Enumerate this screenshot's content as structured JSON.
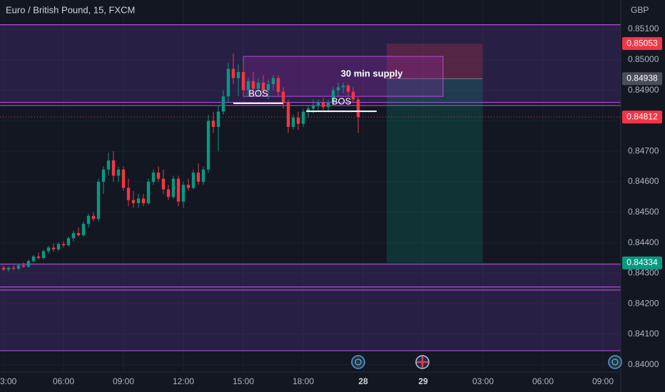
{
  "chart_data": {
    "type": "candlestick",
    "title": "Euro / British Pound, 15, FXCM",
    "currency": "GBP",
    "up_color": "#089981",
    "down_color": "#f23645",
    "level_color": "#b04ad8",
    "grid": true,
    "xlim": [
      -0.714,
      123.57
    ],
    "ylim": [
      0.83976,
      0.85196
    ],
    "xticks": [
      {
        "value": 0,
        "label": "3:00"
      },
      {
        "value": 12,
        "label": "06:00"
      },
      {
        "value": 24,
        "label": "09:00"
      },
      {
        "value": 36,
        "label": "12:00"
      },
      {
        "value": 48,
        "label": "15:00"
      },
      {
        "value": 60,
        "label": "18:00"
      },
      {
        "value": 72,
        "label": "28"
      },
      {
        "value": 84,
        "label": "29"
      },
      {
        "value": 96,
        "label": "03:00"
      },
      {
        "value": 108,
        "label": "06:00"
      },
      {
        "value": 120,
        "label": "09:00"
      }
    ],
    "yticks": [
      {
        "value": 0.84,
        "label": "0.84000"
      },
      {
        "value": 0.841,
        "label": "0.84100"
      },
      {
        "value": 0.842,
        "label": "0.84200"
      },
      {
        "value": 0.843,
        "label": "0.84300"
      },
      {
        "value": 0.844,
        "label": "0.84400"
      },
      {
        "value": 0.845,
        "label": "0.84500"
      },
      {
        "value": 0.846,
        "label": "0.84600"
      },
      {
        "value": 0.847,
        "label": "0.84700"
      },
      {
        "value": 0.848,
        "label": "0.84800"
      },
      {
        "value": 0.849,
        "label": "0.84900"
      },
      {
        "value": 0.85,
        "label": "0.85000"
      },
      {
        "value": 0.851,
        "label": "0.85100"
      }
    ],
    "levels": [
      0.85115,
      0.8486,
      0.8485,
      0.8433,
      0.84255,
      0.84245,
      0.84046
    ],
    "zones": [
      [
        0.85115,
        0.8486
      ],
      [
        0.8433,
        0.84046
      ]
    ],
    "supply": {
      "label": "30 min supply",
      "price": [
        0.85011,
        0.8488
      ],
      "x": [
        48,
        88
      ]
    },
    "bos": [
      {
        "label": "BOS",
        "price": 0.84857,
        "x": [
          46,
          56
        ]
      },
      {
        "label": "BOS",
        "price": 0.84831,
        "x": [
          60.6,
          74.7
        ]
      }
    ],
    "position": {
      "x": [
        76.7,
        95.9
      ],
      "stop": {
        "value": 0.85053,
        "label": "0.85053"
      },
      "entry": {
        "value": 0.84938,
        "label": "0.84938"
      },
      "target": {
        "value": 0.84334,
        "label": "0.84334"
      }
    },
    "last_price": {
      "value": 0.84812,
      "label": "0.84812"
    },
    "candles": [
      [
        0.84318,
        0.84325,
        0.84308,
        0.84312
      ],
      [
        0.84312,
        0.84322,
        0.84305,
        0.84318
      ],
      [
        0.84318,
        0.84326,
        0.8431,
        0.84315
      ],
      [
        0.84315,
        0.8433,
        0.8431,
        0.84326
      ],
      [
        0.84326,
        0.84335,
        0.84318,
        0.84322
      ],
      [
        0.84322,
        0.84345,
        0.84318,
        0.8434
      ],
      [
        0.8434,
        0.8436,
        0.84335,
        0.84355
      ],
      [
        0.84355,
        0.84368,
        0.84345,
        0.8435
      ],
      [
        0.8435,
        0.84378,
        0.84345,
        0.84372
      ],
      [
        0.84372,
        0.8439,
        0.84365,
        0.84384
      ],
      [
        0.84384,
        0.84398,
        0.8437,
        0.84378
      ],
      [
        0.84378,
        0.84402,
        0.84372,
        0.84396
      ],
      [
        0.84396,
        0.84405,
        0.84385,
        0.84392
      ],
      [
        0.84392,
        0.8442,
        0.84388,
        0.84415
      ],
      [
        0.84415,
        0.8444,
        0.84405,
        0.84432
      ],
      [
        0.84432,
        0.8445,
        0.8442,
        0.84425
      ],
      [
        0.84425,
        0.8447,
        0.8442,
        0.84462
      ],
      [
        0.84462,
        0.84495,
        0.8445,
        0.84488
      ],
      [
        0.84488,
        0.845,
        0.8447,
        0.84478
      ],
      [
        0.84478,
        0.8461,
        0.8447,
        0.846
      ],
      [
        0.846,
        0.8465,
        0.8456,
        0.8464
      ],
      [
        0.8464,
        0.84695,
        0.8462,
        0.8467
      ],
      [
        0.8467,
        0.847,
        0.846,
        0.8462
      ],
      [
        0.8462,
        0.8465,
        0.846,
        0.8464
      ],
      [
        0.8464,
        0.8465,
        0.8457,
        0.8458
      ],
      [
        0.8458,
        0.8461,
        0.8452,
        0.8454
      ],
      [
        0.8454,
        0.8457,
        0.84515,
        0.8453
      ],
      [
        0.8453,
        0.8456,
        0.84515,
        0.84545
      ],
      [
        0.84545,
        0.8456,
        0.8452,
        0.8453
      ],
      [
        0.8453,
        0.8461,
        0.84525,
        0.846
      ],
      [
        0.846,
        0.8464,
        0.8459,
        0.8463
      ],
      [
        0.8463,
        0.8465,
        0.846,
        0.8461
      ],
      [
        0.8461,
        0.8464,
        0.8456,
        0.84575
      ],
      [
        0.84575,
        0.8459,
        0.8454,
        0.8455
      ],
      [
        0.8455,
        0.8462,
        0.84545,
        0.8461
      ],
      [
        0.8461,
        0.8462,
        0.8452,
        0.84535
      ],
      [
        0.84535,
        0.846,
        0.84515,
        0.8459
      ],
      [
        0.8459,
        0.8461,
        0.8457,
        0.8458
      ],
      [
        0.8458,
        0.8464,
        0.84575,
        0.8463
      ],
      [
        0.8463,
        0.8466,
        0.8459,
        0.846
      ],
      [
        0.846,
        0.8465,
        0.8459,
        0.8464
      ],
      [
        0.8464,
        0.8482,
        0.8463,
        0.848
      ],
      [
        0.848,
        0.8483,
        0.8476,
        0.8478
      ],
      [
        0.8478,
        0.8485,
        0.847,
        0.8483
      ],
      [
        0.8483,
        0.849,
        0.8482,
        0.8488
      ],
      [
        0.8488,
        0.8499,
        0.8486,
        0.8497
      ],
      [
        0.8497,
        0.8502,
        0.8492,
        0.8494
      ],
      [
        0.8494,
        0.84985,
        0.8488,
        0.8496
      ],
      [
        0.8496,
        0.8499,
        0.8488,
        0.849
      ],
      [
        0.849,
        0.8494,
        0.8488,
        0.8493
      ],
      [
        0.8493,
        0.8496,
        0.8489,
        0.84905
      ],
      [
        0.84905,
        0.8494,
        0.8488,
        0.84925
      ],
      [
        0.84925,
        0.8495,
        0.8489,
        0.849
      ],
      [
        0.849,
        0.84935,
        0.8487,
        0.8492
      ],
      [
        0.8492,
        0.8495,
        0.849,
        0.8494
      ],
      [
        0.8494,
        0.8495,
        0.8488,
        0.84895
      ],
      [
        0.84895,
        0.8491,
        0.8484,
        0.8486
      ],
      [
        0.8486,
        0.8487,
        0.8476,
        0.8478
      ],
      [
        0.8478,
        0.8482,
        0.8477,
        0.8481
      ],
      [
        0.8481,
        0.8483,
        0.8477,
        0.8479
      ],
      [
        0.8479,
        0.8484,
        0.8478,
        0.8483
      ],
      [
        0.8483,
        0.8485,
        0.8481,
        0.8484
      ],
      [
        0.8484,
        0.8487,
        0.84825,
        0.8485
      ],
      [
        0.8485,
        0.8487,
        0.8483,
        0.8486
      ],
      [
        0.8486,
        0.84875,
        0.84835,
        0.84845
      ],
      [
        0.84845,
        0.8487,
        0.8483,
        0.8486
      ],
      [
        0.8486,
        0.8491,
        0.8485,
        0.849
      ],
      [
        0.849,
        0.84925,
        0.8488,
        0.8491
      ],
      [
        0.8491,
        0.84925,
        0.8489,
        0.84915
      ],
      [
        0.84915,
        0.8492,
        0.8488,
        0.84895
      ],
      [
        0.84895,
        0.8491,
        0.8486,
        0.8487
      ],
      [
        0.8487,
        0.8488,
        0.8476,
        0.84812
      ]
    ]
  }
}
